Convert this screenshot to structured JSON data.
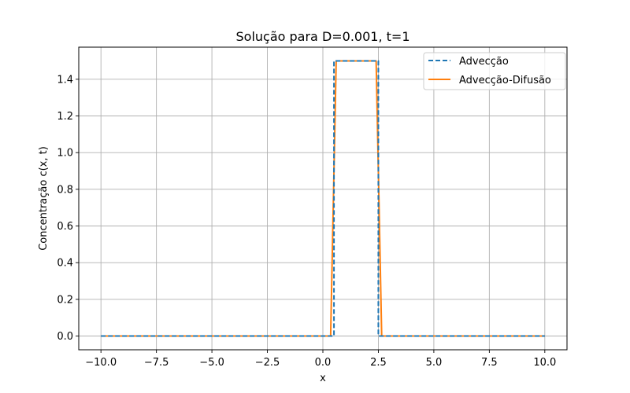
{
  "chart_data": {
    "type": "line",
    "title": "Solução para D=0.001, t=1",
    "xlabel": "x",
    "ylabel": "Concentração c(x, t)",
    "xlim": [
      -11.0,
      11.0
    ],
    "ylim": [
      -0.075,
      1.575
    ],
    "x_ticks": [
      -10.0,
      -7.5,
      -5.0,
      -2.5,
      0.0,
      2.5,
      5.0,
      7.5,
      10.0
    ],
    "x_tick_labels": [
      "−10.0",
      "−7.5",
      "−5.0",
      "−2.5",
      "0.0",
      "2.5",
      "5.0",
      "7.5",
      "10.0"
    ],
    "y_ticks": [
      0.0,
      0.2,
      0.4,
      0.6,
      0.8,
      1.0,
      1.2,
      1.4
    ],
    "y_tick_labels": [
      "0.0",
      "0.2",
      "0.4",
      "0.6",
      "0.8",
      "1.0",
      "1.2",
      "1.4"
    ],
    "grid": true,
    "legend_position": "top-right",
    "series": [
      {
        "name": "Advecção",
        "color": "#1f77b4",
        "style": "dashed",
        "x": [
          -10,
          0.5,
          0.5,
          2.5,
          2.5,
          10
        ],
        "y": [
          0,
          0,
          1.5,
          1.5,
          0,
          0
        ]
      },
      {
        "name": "Advecção-Difusão",
        "color": "#ff7f0e",
        "style": "solid",
        "x": [
          -10,
          0.35,
          0.6,
          2.4,
          2.65,
          10
        ],
        "y": [
          0,
          0,
          1.5,
          1.5,
          0,
          0
        ]
      }
    ]
  }
}
